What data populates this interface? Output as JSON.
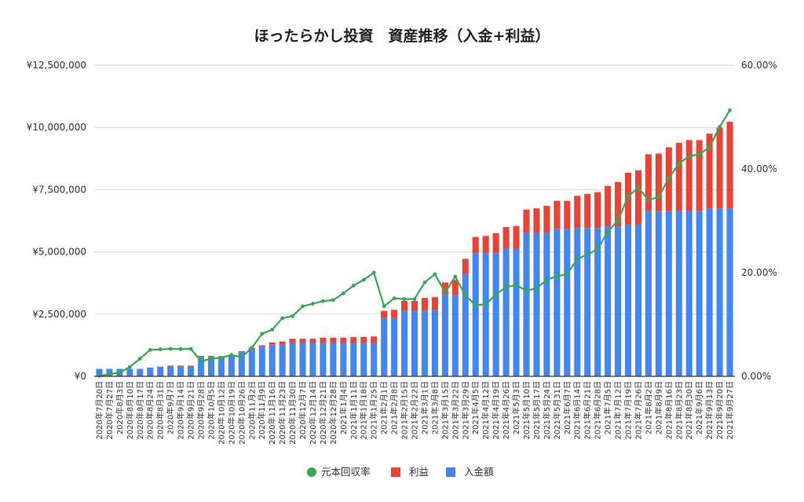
{
  "chart_data": {
    "type": "bar",
    "stacked": true,
    "title": "ほったらかし投資　資産推移（入金+利益）",
    "left_axis": {
      "ticks": [
        "¥0",
        "¥2,500,000",
        "¥5,000,000",
        "¥7,500,000",
        "¥10,000,000",
        "¥12,500,000"
      ],
      "range": [
        0,
        12500000
      ]
    },
    "right_axis": {
      "ticks": [
        "0.00%",
        "20.00%",
        "40.00%",
        "60.00%"
      ],
      "range": [
        0,
        60
      ]
    },
    "grid": true,
    "legend_position": "bottom",
    "categories": [
      "2020年7月20日",
      "2020年7月27日",
      "2020年8月3日",
      "2020年8月10日",
      "2020年8月17日",
      "2020年8月24日",
      "2020年8月31日",
      "2020年9月7日",
      "2020年9月14日",
      "2020年9月21日",
      "2020年9月28日",
      "2020年10月5日",
      "2020年10月12日",
      "2020年10月19日",
      "2020年10月26日",
      "2020年11月2日",
      "2020年11月9日",
      "2020年11月16日",
      "2020年11月23日",
      "2020年11月30日",
      "2020年12月7日",
      "2020年12月14日",
      "2020年12月21日",
      "2020年12月28日",
      "2021年1月4日",
      "2021年1月11日",
      "2021年1月18日",
      "2021年1月25日",
      "2021年2月1日",
      "2021年2月8日",
      "2021年2月15日",
      "2021年2月22日",
      "2021年3月1日",
      "2021年3月8日",
      "2021年3月15日",
      "2021年3月22日",
      "2021年3月29日",
      "2021年4月5日",
      "2021年4月12日",
      "2021年4月19日",
      "2021年4月26日",
      "2021年5月3日",
      "2021年5月10日",
      "2021年5月17日",
      "2021年5月24日",
      "2021年5月31日",
      "2021年6月7日",
      "2021年6月14日",
      "2021年6月21日",
      "2021年6月28日",
      "2021年7月5日",
      "2021年7月12日",
      "2021年7月19日",
      "2021年7月26日",
      "2021年8月2日",
      "2021年8月9日",
      "2021年8月16日",
      "2021年8月23日",
      "2021年8月30日",
      "2021年9月6日",
      "2021年9月13日",
      "2021年9月20日",
      "2021年9月27日"
    ],
    "series": [
      {
        "name": "入金額",
        "type": "bar",
        "axis": "left",
        "color": "#4285f4",
        "values": [
          300000,
          300000,
          300000,
          300000,
          300000,
          350000,
          390000,
          390000,
          390000,
          390000,
          780000,
          780000,
          760000,
          810000,
          970000,
          1070000,
          1190000,
          1270000,
          1270000,
          1340000,
          1340000,
          1340000,
          1340000,
          1340000,
          1340000,
          1340000,
          1340000,
          1340000,
          2350000,
          2350000,
          2640000,
          2640000,
          2640000,
          2670000,
          3270000,
          3270000,
          4110000,
          4950000,
          4950000,
          4950000,
          5130000,
          5130000,
          5760000,
          5760000,
          5760000,
          5910000,
          5910000,
          5960000,
          5960000,
          5960000,
          6020000,
          6020000,
          6090000,
          6090000,
          6640000,
          6640000,
          6640000,
          6640000,
          6640000,
          6640000,
          6750000,
          6750000,
          6750000
        ]
      },
      {
        "name": "利益",
        "type": "bar",
        "axis": "left",
        "color": "#ea4335",
        "values": [
          0,
          0,
          0,
          0,
          0,
          0,
          0,
          40000,
          40000,
          40000,
          40000,
          40000,
          50000,
          20000,
          40000,
          80000,
          60000,
          90000,
          130000,
          170000,
          170000,
          170000,
          210000,
          210000,
          210000,
          240000,
          240000,
          260000,
          280000,
          320000,
          390000,
          390000,
          510000,
          510000,
          500000,
          600000,
          610000,
          650000,
          690000,
          800000,
          870000,
          910000,
          940000,
          990000,
          1090000,
          1140000,
          1140000,
          1290000,
          1370000,
          1440000,
          1630000,
          1790000,
          2090000,
          2190000,
          2280000,
          2310000,
          2560000,
          2740000,
          2850000,
          2850000,
          3000000,
          3240000,
          3480000
        ]
      },
      {
        "name": "元本回収率",
        "type": "line",
        "axis": "right",
        "color": "#34a853",
        "unit": "%",
        "values": [
          0.1,
          0.4,
          0.7,
          1.8,
          3.4,
          5.1,
          5.2,
          5.3,
          5.25,
          5.3,
          2.9,
          3.4,
          3.6,
          4.1,
          3.7,
          5.5,
          8.2,
          9.0,
          11.2,
          11.6,
          13.5,
          14.0,
          14.5,
          14.7,
          16.0,
          17.5,
          18.6,
          20.0,
          13.5,
          15.05,
          14.9,
          14.9,
          18.1,
          19.7,
          16.2,
          19.2,
          15.6,
          13.7,
          13.9,
          15.8,
          17.2,
          17.6,
          16.5,
          17.0,
          18.6,
          19.3,
          19.7,
          22.6,
          23.5,
          24.5,
          27.9,
          30.0,
          34.7,
          36.4,
          34.0,
          34.6,
          38.2,
          41.0,
          42.5,
          42.8,
          44.2,
          48.1,
          51.3
        ]
      }
    ],
    "legend": [
      "元本回収率",
      "利益",
      "入金額"
    ]
  }
}
